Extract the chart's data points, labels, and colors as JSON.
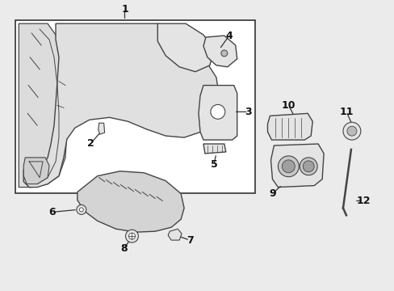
{
  "bg_color": "#ebebeb",
  "box_color": "#cccccc",
  "line_color": "#333333",
  "part_fill": "#e4e4e4",
  "part_edge": "#444444",
  "label_color": "#111111",
  "label_fontsize": 9,
  "leader_color": "#333333",
  "labels": [
    {
      "text": "1",
      "xt": 154,
      "yt": 10,
      "xa": 154,
      "ya": 24
    },
    {
      "text": "2",
      "xt": 112,
      "yt": 177,
      "xa": 126,
      "ya": 161
    },
    {
      "text": "3",
      "xt": 308,
      "yt": 138,
      "xa": 290,
      "ya": 138
    },
    {
      "text": "4",
      "xt": 284,
      "yt": 43,
      "xa": 272,
      "ya": 60
    },
    {
      "text": "5",
      "xt": 265,
      "yt": 204,
      "xa": 268,
      "ya": 190
    },
    {
      "text": "6",
      "xt": 64,
      "yt": 263,
      "xa": 95,
      "ya": 260
    },
    {
      "text": "7",
      "xt": 235,
      "yt": 298,
      "xa": 218,
      "ya": 292
    },
    {
      "text": "8",
      "xt": 153,
      "yt": 308,
      "xa": 162,
      "ya": 296
    },
    {
      "text": "9",
      "xt": 338,
      "yt": 240,
      "xa": 350,
      "ya": 229
    },
    {
      "text": "10",
      "xt": 358,
      "yt": 130,
      "xa": 365,
      "ya": 143
    },
    {
      "text": "11",
      "xt": 430,
      "yt": 138,
      "xa": 437,
      "ya": 153
    },
    {
      "text": "12",
      "xt": 451,
      "yt": 249,
      "xa": 440,
      "ya": 249
    }
  ]
}
